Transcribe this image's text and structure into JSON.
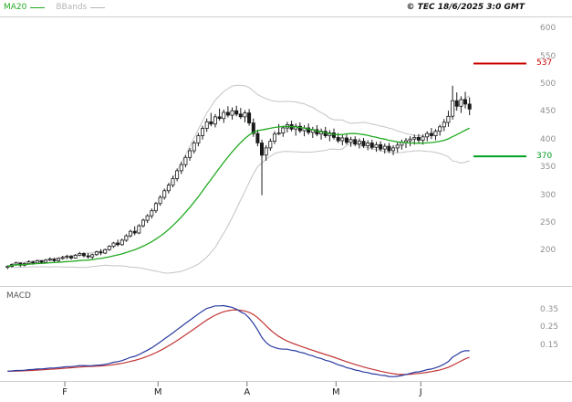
{
  "header": {
    "legend_ma20": {
      "label": "MA20",
      "color": "#22aa22"
    },
    "legend_bbands": {
      "label": "BBands",
      "color": "#b5b5b5"
    },
    "copyright": "© TEC 18/6/2025 3:0 GMT"
  },
  "chart_data": {
    "type": "candlestick",
    "title": "",
    "x_axis": {
      "month_labels": [
        {
          "label": "F",
          "index": 14
        },
        {
          "label": "M",
          "index": 36
        },
        {
          "label": "A",
          "index": 57
        },
        {
          "label": "M",
          "index": 78
        },
        {
          "label": "J",
          "index": 98
        }
      ]
    },
    "price_panel": {
      "ylim": [
        140,
        615
      ],
      "yticks": [
        "600",
        "550",
        "500",
        "450",
        "400",
        "350",
        "300",
        "250",
        "200"
      ],
      "ytick_values": [
        600,
        550,
        500,
        450,
        400,
        350,
        300,
        250,
        200
      ],
      "grid": false,
      "candle_color": "#1a1a1a",
      "indicators": [
        {
          "name": "MA20",
          "type": "sma",
          "period": 20,
          "color": "#22aa22"
        },
        {
          "name": "BBands",
          "type": "bollinger",
          "period": 20,
          "stddev": 2,
          "color": "#c4c4c4"
        }
      ],
      "levels": [
        {
          "label": "537",
          "value": 537,
          "color": "#cc0000"
        },
        {
          "label": "370",
          "value": 370,
          "color": "#00a020"
        }
      ],
      "candles_ohlc": [
        [
          170,
          174,
          167,
          172
        ],
        [
          172,
          177,
          170,
          175
        ],
        [
          175,
          180,
          173,
          178
        ],
        [
          178,
          179,
          171,
          174
        ],
        [
          174,
          179,
          172,
          177
        ],
        [
          177,
          183,
          175,
          180
        ],
        [
          180,
          182,
          175,
          178
        ],
        [
          178,
          184,
          176,
          182
        ],
        [
          182,
          183,
          176,
          179
        ],
        [
          179,
          185,
          177,
          183
        ],
        [
          183,
          188,
          181,
          185
        ],
        [
          185,
          187,
          179,
          182
        ],
        [
          182,
          188,
          180,
          186
        ],
        [
          186,
          191,
          184,
          188
        ],
        [
          188,
          193,
          185,
          190
        ],
        [
          190,
          192,
          184,
          187
        ],
        [
          187,
          194,
          186,
          192
        ],
        [
          192,
          198,
          190,
          195
        ],
        [
          195,
          197,
          188,
          191
        ],
        [
          191,
          196,
          186,
          189
        ],
        [
          189,
          195,
          185,
          193
        ],
        [
          193,
          200,
          191,
          198
        ],
        [
          198,
          203,
          192,
          196
        ],
        [
          196,
          204,
          194,
          202
        ],
        [
          202,
          210,
          200,
          208
        ],
        [
          208,
          216,
          205,
          214
        ],
        [
          214,
          220,
          208,
          211
        ],
        [
          211,
          222,
          209,
          219
        ],
        [
          219,
          230,
          216,
          227
        ],
        [
          227,
          238,
          224,
          235
        ],
        [
          235,
          244,
          228,
          232
        ],
        [
          232,
          248,
          230,
          245
        ],
        [
          245,
          258,
          242,
          255
        ],
        [
          255,
          266,
          250,
          263
        ],
        [
          263,
          276,
          258,
          272
        ],
        [
          272,
          288,
          268,
          285
        ],
        [
          285,
          300,
          281,
          296
        ],
        [
          296,
          312,
          292,
          308
        ],
        [
          308,
          322,
          303,
          318
        ],
        [
          318,
          335,
          314,
          330
        ],
        [
          330,
          348,
          325,
          344
        ],
        [
          344,
          360,
          338,
          355
        ],
        [
          355,
          372,
          350,
          368
        ],
        [
          368,
          385,
          362,
          380
        ],
        [
          380,
          398,
          375,
          394
        ],
        [
          394,
          412,
          388,
          407
        ],
        [
          407,
          425,
          400,
          420
        ],
        [
          420,
          438,
          414,
          432
        ],
        [
          432,
          448,
          424,
          428
        ],
        [
          428,
          446,
          422,
          441
        ],
        [
          441,
          456,
          434,
          438
        ],
        [
          438,
          454,
          430,
          449
        ],
        [
          449,
          460,
          440,
          444
        ],
        [
          444,
          458,
          436,
          452
        ],
        [
          452,
          461,
          442,
          446
        ],
        [
          446,
          457,
          437,
          441
        ],
        [
          441,
          453,
          431,
          448
        ],
        [
          448,
          455,
          425,
          430
        ],
        [
          430,
          438,
          405,
          411
        ],
        [
          411,
          418,
          388,
          394
        ],
        [
          394,
          400,
          300,
          372
        ],
        [
          372,
          390,
          362,
          385
        ],
        [
          385,
          402,
          380,
          397
        ],
        [
          397,
          415,
          392,
          410
        ],
        [
          410,
          428,
          408,
          412
        ],
        [
          412,
          425,
          405,
          421
        ],
        [
          421,
          432,
          413,
          427
        ],
        [
          427,
          434,
          415,
          419
        ],
        [
          419,
          429,
          407,
          424
        ],
        [
          424,
          431,
          412,
          416
        ],
        [
          416,
          426,
          406,
          421
        ],
        [
          421,
          429,
          409,
          413
        ],
        [
          413,
          423,
          403,
          418
        ],
        [
          418,
          426,
          406,
          410
        ],
        [
          410,
          420,
          400,
          415
        ],
        [
          415,
          423,
          403,
          407
        ],
        [
          407,
          417,
          397,
          412
        ],
        [
          412,
          420,
          400,
          404
        ],
        [
          404,
          412,
          394,
          398
        ],
        [
          398,
          408,
          390,
          403
        ],
        [
          403,
          409,
          391,
          395
        ],
        [
          395,
          405,
          387,
          400
        ],
        [
          400,
          406,
          388,
          392
        ],
        [
          392,
          402,
          384,
          397
        ],
        [
          397,
          403,
          385,
          389
        ],
        [
          389,
          399,
          381,
          394
        ],
        [
          394,
          400,
          382,
          386
        ],
        [
          386,
          396,
          378,
          391
        ],
        [
          391,
          397,
          379,
          383
        ],
        [
          383,
          393,
          375,
          388
        ],
        [
          388,
          394,
          376,
          380
        ],
        [
          380,
          390,
          372,
          385
        ],
        [
          385,
          395,
          377,
          390
        ],
        [
          390,
          400,
          382,
          395
        ],
        [
          395,
          403,
          385,
          398
        ],
        [
          398,
          406,
          388,
          401
        ],
        [
          401,
          409,
          391,
          404
        ],
        [
          404,
          410,
          394,
          399
        ],
        [
          399,
          409,
          391,
          405
        ],
        [
          405,
          415,
          397,
          411
        ],
        [
          411,
          421,
          401,
          407
        ],
        [
          407,
          419,
          399,
          415
        ],
        [
          415,
          427,
          407,
          423
        ],
        [
          423,
          437,
          415,
          431
        ],
        [
          431,
          452,
          423,
          442
        ],
        [
          442,
          497,
          436,
          470
        ],
        [
          470,
          485,
          452,
          460
        ],
        [
          460,
          478,
          448,
          472
        ],
        [
          472,
          486,
          456,
          464
        ],
        [
          464,
          476,
          444,
          455
        ]
      ]
    },
    "macd_panel": {
      "label": "MACD",
      "ylim": [
        -0.04,
        0.44
      ],
      "yticks": [
        "0.35",
        "0.25",
        "0.15"
      ],
      "ytick_values": [
        0.35,
        0.25,
        0.15
      ],
      "macd_params": {
        "fast": 12,
        "slow": 26,
        "signal": 9,
        "display_peak": 0.375
      },
      "line_color": "#2a3ba0",
      "signal_color": "#c23535"
    }
  }
}
